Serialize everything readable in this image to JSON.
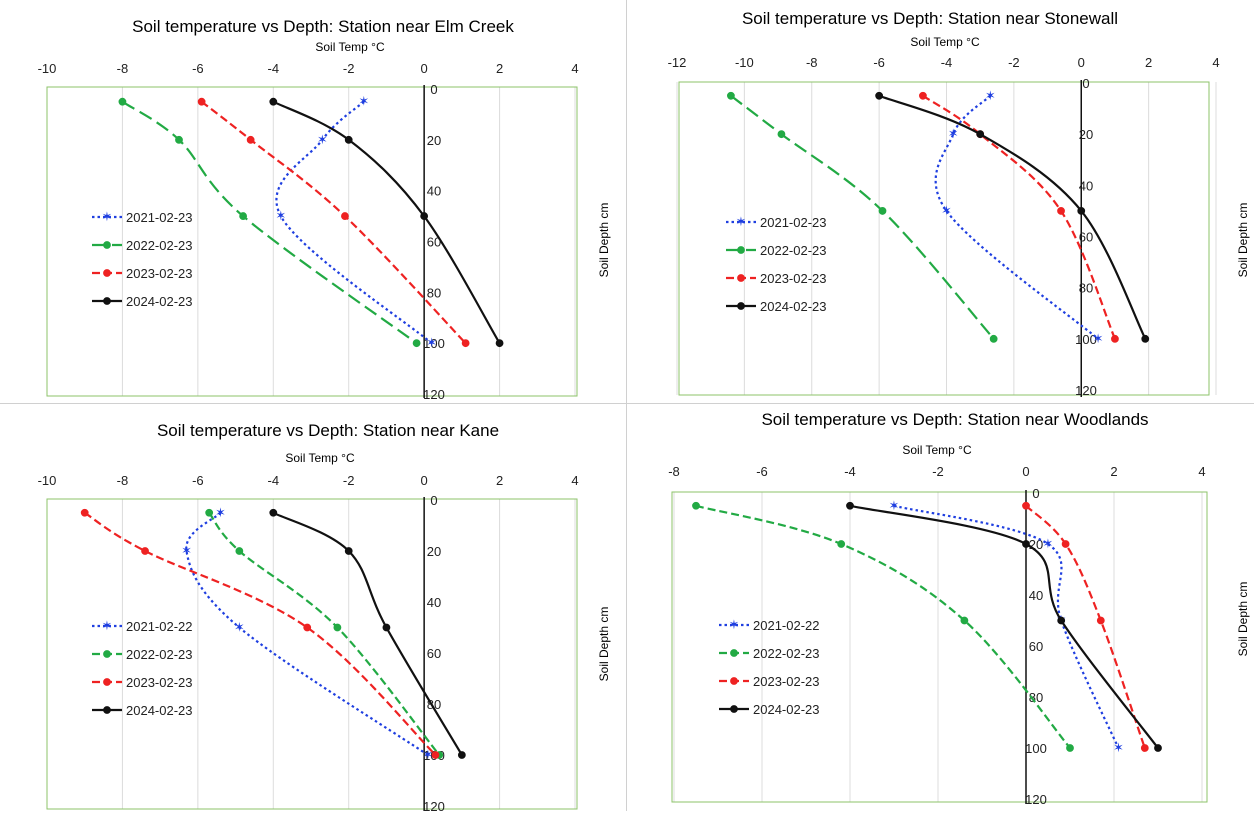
{
  "chart_data": [
    {
      "type": "line",
      "title": "Soil temperature vs Depth: Station near Elm Creek",
      "xlabel": "Soil Temp °C",
      "ylabel": "Soil Depth cm",
      "xlim": [
        -10,
        4
      ],
      "ylim": [
        120,
        0
      ],
      "xticks": [
        -10,
        -8,
        -6,
        -4,
        -2,
        0,
        2,
        4
      ],
      "yticks": [
        0,
        20,
        40,
        60,
        80,
        100,
        120
      ],
      "legend": "left",
      "series": [
        {
          "name": "2021-02-23",
          "color": "#1f3fe0",
          "dash": "dot",
          "marker": "star",
          "points": [
            [
              -1.6,
              5
            ],
            [
              -2.7,
              20
            ],
            [
              -3.8,
              50
            ],
            [
              0.2,
              100
            ]
          ]
        },
        {
          "name": "2022-02-23",
          "color": "#22aa44",
          "dash": "longdash",
          "marker": "circle",
          "points": [
            [
              -8.0,
              5
            ],
            [
              -6.5,
              20
            ],
            [
              -4.8,
              50
            ],
            [
              -0.2,
              100
            ]
          ]
        },
        {
          "name": "2023-02-23",
          "color": "#ee2222",
          "dash": "dash",
          "marker": "circle",
          "points": [
            [
              -5.9,
              5
            ],
            [
              -4.6,
              20
            ],
            [
              -2.1,
              50
            ],
            [
              1.1,
              100
            ]
          ]
        },
        {
          "name": "2024-02-23",
          "color": "#111111",
          "dash": "solid",
          "marker": "circle",
          "points": [
            [
              -4.0,
              5
            ],
            [
              -2.0,
              20
            ],
            [
              0,
              50
            ],
            [
              2.0,
              100
            ]
          ]
        }
      ]
    },
    {
      "type": "line",
      "title": "Soil temperature vs Depth: Station near Stonewall",
      "xlabel": "Soil Temp °C",
      "ylabel": "Soil Depth cm",
      "xlim": [
        -12,
        4
      ],
      "ylim": [
        120,
        0
      ],
      "xticks": [
        -12,
        -10,
        -8,
        -6,
        -4,
        -2,
        0,
        2,
        4
      ],
      "yticks": [
        0,
        20,
        40,
        60,
        80,
        100,
        120
      ],
      "legend": "left",
      "series": [
        {
          "name": "2021-02-23",
          "color": "#1f3fe0",
          "dash": "dot",
          "marker": "star",
          "points": [
            [
              -2.7,
              5
            ],
            [
              -3.8,
              20
            ],
            [
              -4.0,
              50
            ],
            [
              0.5,
              100
            ]
          ]
        },
        {
          "name": "2022-02-23",
          "color": "#22aa44",
          "dash": "longdash",
          "marker": "circle",
          "points": [
            [
              -10.4,
              5
            ],
            [
              -8.9,
              20
            ],
            [
              -5.9,
              50
            ],
            [
              -2.6,
              100
            ]
          ]
        },
        {
          "name": "2023-02-23",
          "color": "#ee2222",
          "dash": "dash",
          "marker": "circle",
          "points": [
            [
              -4.7,
              5
            ],
            [
              -3.0,
              20
            ],
            [
              -0.6,
              50
            ],
            [
              1.0,
              100
            ]
          ]
        },
        {
          "name": "2024-02-23",
          "color": "#111111",
          "dash": "solid",
          "marker": "circle",
          "points": [
            [
              -6.0,
              5
            ],
            [
              -3.0,
              20
            ],
            [
              0,
              50
            ],
            [
              1.9,
              100
            ]
          ]
        }
      ]
    },
    {
      "type": "line",
      "title": "Soil temperature vs Depth: Station near Kane",
      "xlabel": "Soil Temp °C",
      "ylabel": "Soil Depth cm",
      "xlim": [
        -10,
        4
      ],
      "ylim": [
        120,
        0
      ],
      "xticks": [
        -10,
        -8,
        -6,
        -4,
        -2,
        0,
        2,
        4
      ],
      "yticks": [
        0,
        20,
        40,
        60,
        80,
        100,
        120
      ],
      "legend": "left",
      "series": [
        {
          "name": "2021-02-22",
          "color": "#1f3fe0",
          "dash": "dot",
          "marker": "star",
          "points": [
            [
              -5.4,
              5
            ],
            [
              -6.3,
              20
            ],
            [
              -4.9,
              50
            ],
            [
              0.1,
              100
            ]
          ]
        },
        {
          "name": "2022-02-23",
          "color": "#22aa44",
          "dash": "dash",
          "marker": "circle",
          "points": [
            [
              -5.7,
              5
            ],
            [
              -4.9,
              20
            ],
            [
              -2.3,
              50
            ],
            [
              0.4,
              100
            ]
          ]
        },
        {
          "name": "2023-02-23",
          "color": "#ee2222",
          "dash": "dash",
          "marker": "circle",
          "points": [
            [
              -9.0,
              5
            ],
            [
              -7.4,
              20
            ],
            [
              -3.1,
              50
            ],
            [
              0.3,
              100
            ]
          ]
        },
        {
          "name": "2024-02-23",
          "color": "#111111",
          "dash": "solid",
          "marker": "circle",
          "points": [
            [
              -4.0,
              5
            ],
            [
              -2.0,
              20
            ],
            [
              -1.0,
              50
            ],
            [
              1.0,
              100
            ]
          ]
        }
      ]
    },
    {
      "type": "line",
      "title": "Soil temperature vs Depth: Station near Woodlands",
      "xlabel": "Soil Temp °C",
      "ylabel": "Soil Depth cm",
      "xlim": [
        -8,
        4
      ],
      "ylim": [
        120,
        0
      ],
      "xticks": [
        -8,
        -6,
        -4,
        -2,
        0,
        2,
        4
      ],
      "yticks": [
        0,
        20,
        40,
        60,
        80,
        100,
        120
      ],
      "legend": "left",
      "series": [
        {
          "name": "2021-02-22",
          "color": "#1f3fe0",
          "dash": "dot",
          "marker": "star",
          "points": [
            [
              -3.0,
              5
            ],
            [
              0.5,
              20
            ],
            [
              0.8,
              50
            ],
            [
              2.1,
              100
            ]
          ]
        },
        {
          "name": "2022-02-23",
          "color": "#22aa44",
          "dash": "dash",
          "marker": "circle",
          "points": [
            [
              -7.5,
              5
            ],
            [
              -4.2,
              20
            ],
            [
              -1.4,
              50
            ],
            [
              1.0,
              100
            ]
          ]
        },
        {
          "name": "2023-02-23",
          "color": "#ee2222",
          "dash": "dash",
          "marker": "circle",
          "points": [
            [
              0,
              5
            ],
            [
              0.9,
              20
            ],
            [
              1.7,
              50
            ],
            [
              2.7,
              100
            ]
          ]
        },
        {
          "name": "2024-02-23",
          "color": "#111111",
          "dash": "solid",
          "marker": "circle",
          "points": [
            [
              -4.0,
              5
            ],
            [
              0,
              20
            ],
            [
              0.8,
              50
            ],
            [
              3.0,
              100
            ]
          ]
        }
      ]
    }
  ]
}
